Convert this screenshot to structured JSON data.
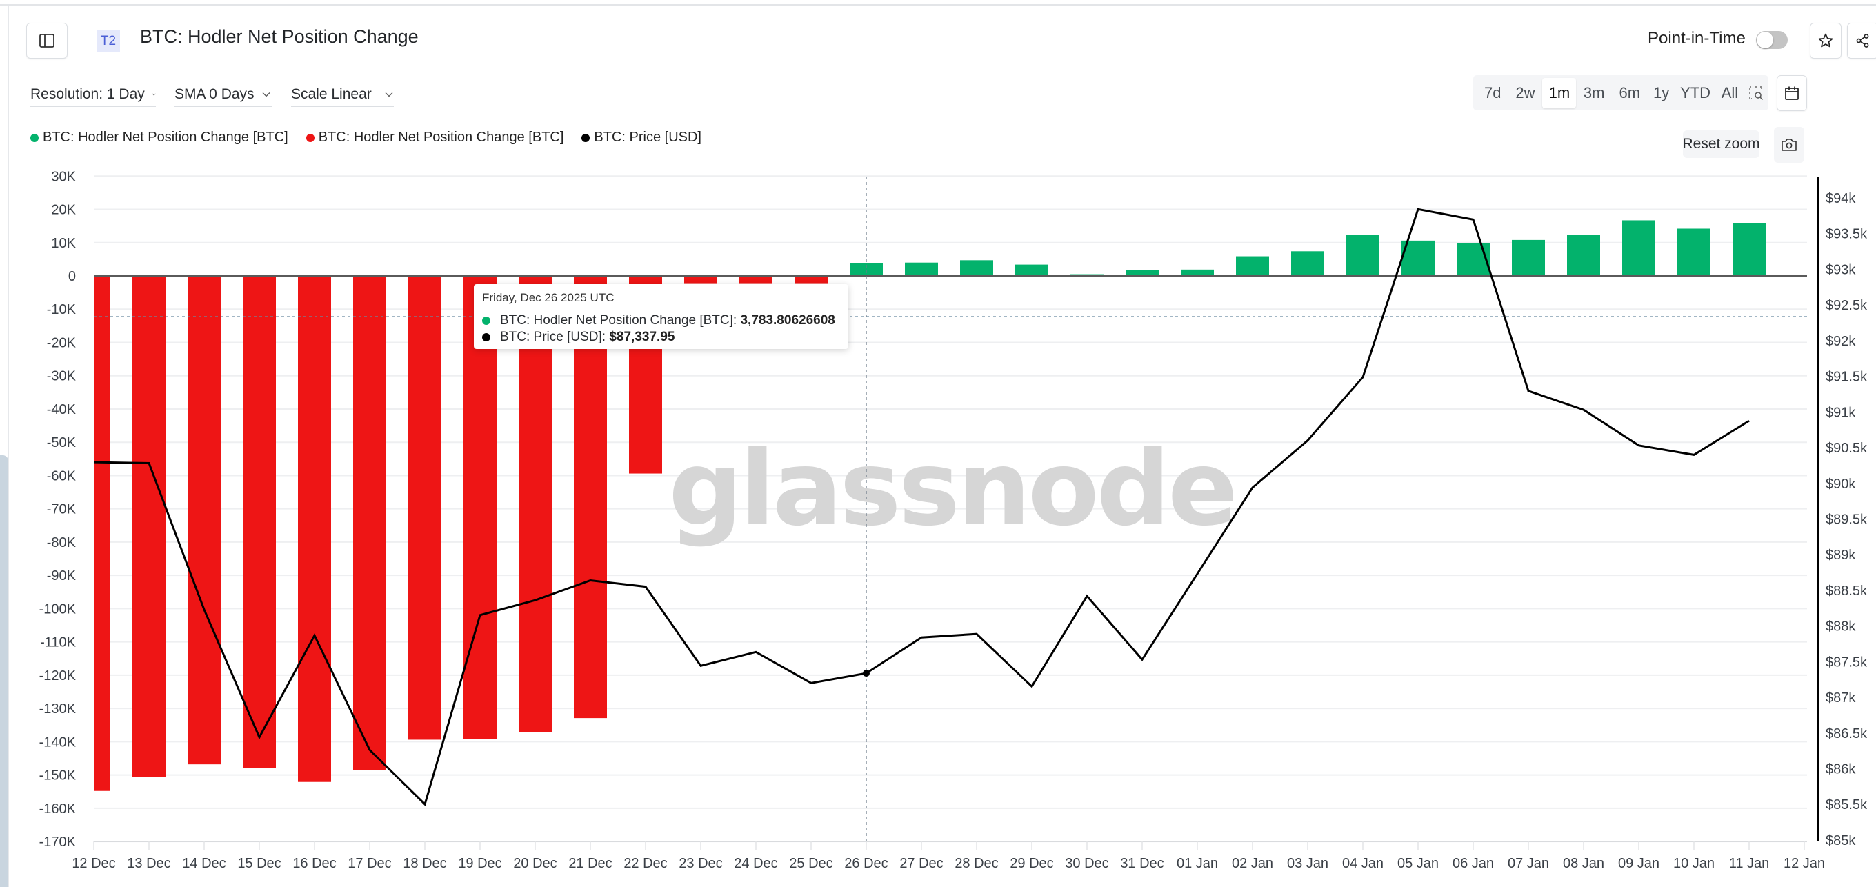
{
  "header": {
    "badge": "T2",
    "title": "BTC: Hodler Net Position Change",
    "point_in_time_label": "Point-in-Time",
    "point_in_time_enabled": false
  },
  "controls": {
    "resolution": "Resolution: 1 Day",
    "sma": "SMA 0 Days",
    "scale": "Scale Linear",
    "ranges": [
      "7d",
      "2w",
      "1m",
      "3m",
      "6m",
      "1y",
      "YTD",
      "All"
    ],
    "active_range": "1m",
    "reset_zoom": "Reset zoom"
  },
  "legend": [
    {
      "label": "BTC: Hodler Net Position Change [BTC]",
      "color": "#03b26c"
    },
    {
      "label": "BTC: Hodler Net Position Change [BTC]",
      "color": "#ee1515"
    },
    {
      "label": "BTC: Price [USD]",
      "color": "#000000"
    }
  ],
  "tooltip": {
    "date": "Friday, Dec 26 2025 UTC",
    "rows": [
      {
        "label": "BTC: Hodler Net Position Change [BTC]: ",
        "value": "3,783.80626608",
        "color": "#03b26c"
      },
      {
        "label": "BTC: Price [USD]: ",
        "value": "$87,337.95",
        "color": "#000000"
      }
    ]
  },
  "watermark": "glassnode",
  "colors": {
    "positive": "#03b26c",
    "negative": "#ee1515",
    "price": "#000000",
    "zero_line": "#5a5a5a",
    "grid": "#eeeff1"
  },
  "chart_data": {
    "type": "bar",
    "title": "BTC: Hodler Net Position Change",
    "categories": [
      "12 Dec",
      "13 Dec",
      "14 Dec",
      "15 Dec",
      "16 Dec",
      "17 Dec",
      "18 Dec",
      "19 Dec",
      "20 Dec",
      "21 Dec",
      "22 Dec",
      "23 Dec",
      "24 Dec",
      "25 Dec",
      "26 Dec",
      "27 Dec",
      "28 Dec",
      "29 Dec",
      "30 Dec",
      "31 Dec",
      "01 Jan",
      "02 Jan",
      "03 Jan",
      "04 Jan",
      "05 Jan",
      "06 Jan",
      "07 Jan",
      "08 Jan",
      "09 Jan",
      "10 Jan",
      "11 Jan"
    ],
    "x_tick_labels": [
      "12 Dec",
      "13 Dec",
      "14 Dec",
      "15 Dec",
      "16 Dec",
      "17 Dec",
      "18 Dec",
      "19 Dec",
      "20 Dec",
      "21 Dec",
      "22 Dec",
      "23 Dec",
      "24 Dec",
      "25 Dec",
      "26 Dec",
      "27 Dec",
      "28 Dec",
      "29 Dec",
      "30 Dec",
      "31 Dec",
      "01 Jan",
      "02 Jan",
      "03 Jan",
      "04 Jan",
      "05 Jan",
      "06 Jan",
      "07 Jan",
      "08 Jan",
      "09 Jan",
      "10 Jan",
      "11 Jan",
      "12 Jan"
    ],
    "series": [
      {
        "name": "BTC: Hodler Net Position Change [BTC]",
        "axis": "left",
        "type": "bar",
        "values": [
          -154800,
          -150600,
          -146800,
          -147900,
          -152100,
          -148600,
          -139400,
          -139100,
          -137100,
          -132900,
          -59400,
          -2400,
          -2400,
          -2400,
          3784,
          4000,
          4700,
          3400,
          500,
          1700,
          1900,
          5900,
          7400,
          12300,
          10600,
          9800,
          10800,
          12300,
          16700,
          14200,
          15800
        ]
      },
      {
        "name": "BTC: Price [USD]",
        "axis": "right",
        "type": "line",
        "values": [
          90296,
          90283,
          88230,
          86441,
          87868,
          86263,
          85502,
          88153,
          88362,
          88639,
          88551,
          87443,
          87636,
          87201,
          87338,
          87840,
          87888,
          87153,
          88420,
          87530,
          88732,
          89941,
          90602,
          91488,
          93842,
          93697,
          91295,
          91031,
          90531,
          90400,
          90876
        ]
      }
    ],
    "y_left": {
      "ticks": [
        30000,
        20000,
        10000,
        0,
        -10000,
        -20000,
        -30000,
        -40000,
        -50000,
        -60000,
        -70000,
        -80000,
        -90000,
        -100000,
        -110000,
        -120000,
        -130000,
        -140000,
        -150000,
        -160000,
        -170000
      ],
      "tick_labels": [
        "30K",
        "20K",
        "10K",
        "0",
        "-10K",
        "-20K",
        "-30K",
        "-40K",
        "-50K",
        "-60K",
        "-70K",
        "-80K",
        "-90K",
        "-100K",
        "-110K",
        "-120K",
        "-130K",
        "-140K",
        "-150K",
        "-160K",
        "-170K"
      ],
      "range": [
        -170000,
        30000
      ]
    },
    "y_right": {
      "ticks": [
        94000,
        93500,
        93000,
        92500,
        92000,
        91500,
        91000,
        90500,
        90000,
        89500,
        89000,
        88500,
        88000,
        87500,
        87000,
        86500,
        86000,
        85500,
        85000
      ],
      "tick_labels": [
        "$94k",
        "$93.5k",
        "$93k",
        "$92.5k",
        "$92k",
        "$91.5k",
        "$91k",
        "$90.5k",
        "$90k",
        "$89.5k",
        "$89k",
        "$88.5k",
        "$88k",
        "$87.5k",
        "$87k",
        "$86.5k",
        "$86k",
        "$85.5k",
        "$85k"
      ],
      "range": [
        85000,
        94000
      ]
    },
    "xlabel": "",
    "ylabel": "",
    "grid": true,
    "crosshair_category": "26 Dec",
    "legend_position": "top-left"
  }
}
